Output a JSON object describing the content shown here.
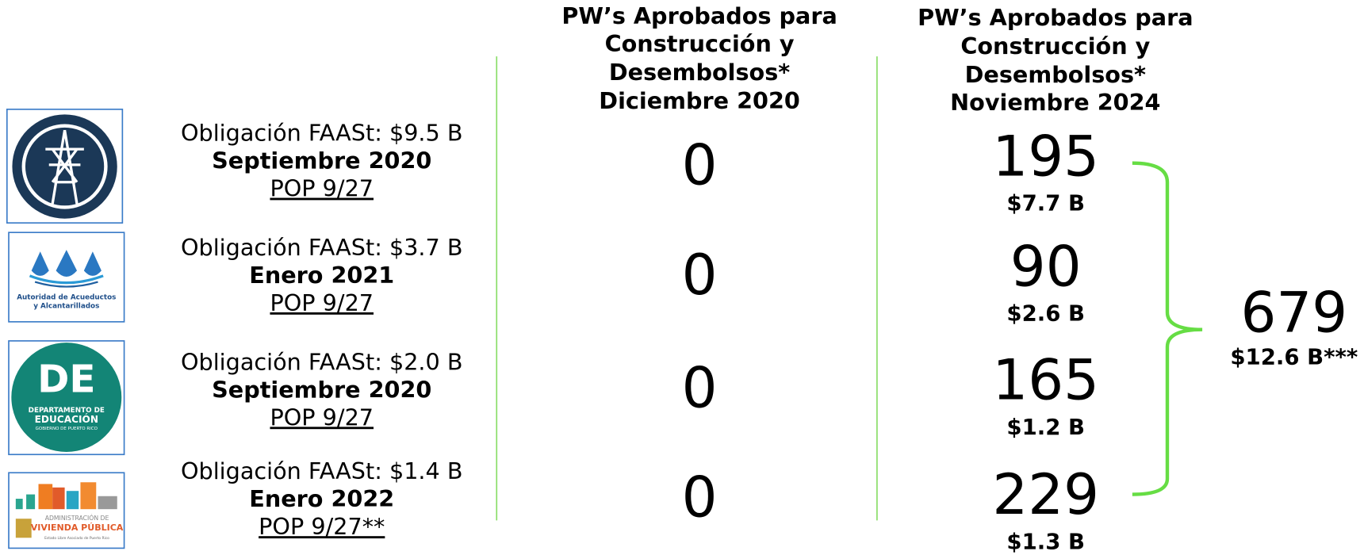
{
  "headers": [
    "PW’s Aprobados para Construcción y Desembolsos* Diciembre 2020",
    "PW’s Aprobados para Construcción y Desembolsos* Noviembre 2024"
  ],
  "header_lines": [
    [
      "PW’s Aprobados para",
      "Construcción y",
      "Desembolsos*",
      "Diciembre 2020"
    ],
    [
      "PW’s Aprobados para",
      "Construcción y",
      "Desembolsos*",
      "Noviembre 2024"
    ]
  ],
  "logos": {
    "aaa": "Autoridad de Acueductos",
    "aaa2": "y Alcantarillados",
    "de": "DE",
    "de2": "DEPARTAMENTO DE",
    "de3": "EDUCACIÓN",
    "de4": "GOBIERNO DE PUERTO RICO",
    "avp": "ADMINISTRACIÓN DE",
    "avp2": "VIVIENDA PÚBLICA",
    "avp3": "Estado Libre Asociado de Puerto Rico"
  },
  "rows": [
    {
      "obligation": "Obligación FAASt: $9.5 B",
      "date": "Septiembre 2020",
      "pop": "POP 9/27",
      "dec2020": "0",
      "nov2024": "195",
      "amount": "$7.7 B"
    },
    {
      "obligation": "Obligación FAASt: $3.7 B",
      "date": "Enero 2021",
      "pop": "POP 9/27",
      "dec2020": "0",
      "nov2024": "90",
      "amount": "$2.6 B"
    },
    {
      "obligation": "Obligación FAASt: $2.0 B",
      "date": "Septiembre 2020",
      "pop": "POP 9/27",
      "dec2020": "0",
      "nov2024": "165",
      "amount": "$1.2 B"
    },
    {
      "obligation": "Obligación FAASt: $1.4 B",
      "date": "Enero 2022",
      "pop": "POP 9/27**",
      "dec2020": "0",
      "nov2024": "229",
      "amount": "$1.3 B"
    }
  ],
  "total": {
    "count": "679",
    "amount": "$12.6 B***"
  }
}
